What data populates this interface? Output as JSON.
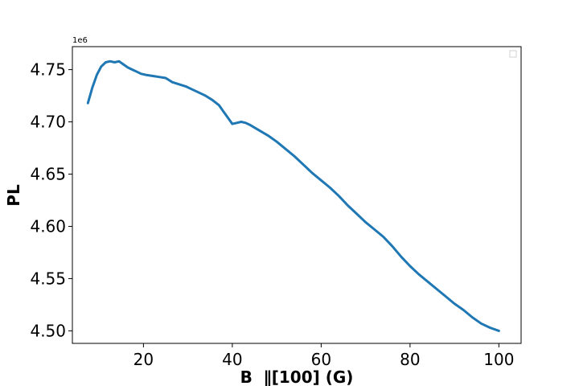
{
  "chart_data": {
    "type": "line",
    "title": "",
    "xlabel": "B  ∥[100] (G)",
    "ylabel": "PL",
    "y_offset_label": "1e6",
    "xlim": [
      4,
      105
    ],
    "ylim": [
      4.488,
      4.772
    ],
    "x_ticks": [
      20,
      40,
      60,
      80,
      100
    ],
    "x_tick_labels": [
      "20",
      "40",
      "60",
      "80",
      "100"
    ],
    "y_ticks": [
      4.5,
      4.55,
      4.6,
      4.65,
      4.7,
      4.75
    ],
    "y_tick_labels": [
      "4.50",
      "4.55",
      "4.60",
      "4.65",
      "4.70",
      "4.75"
    ],
    "grid": false,
    "legend": "top-right (empty)",
    "series": [
      {
        "color": "#1f77b4",
        "x": [
          7.5,
          8.5,
          9.5,
          10.5,
          11.5,
          12.5,
          13.5,
          14.5,
          15.5,
          16.5,
          17.5,
          18.5,
          19.5,
          20.5,
          22,
          23.5,
          25,
          26.5,
          28,
          29.5,
          31,
          32.5,
          34,
          35.5,
          37,
          38,
          39,
          40,
          41,
          42,
          43,
          44,
          46,
          48,
          50,
          52,
          54,
          56,
          58,
          60,
          62,
          64,
          66,
          68,
          70,
          72,
          74,
          76,
          78,
          80,
          82,
          84,
          86,
          88,
          90,
          92,
          94,
          96,
          98,
          100
        ],
        "y": [
          4.718,
          4.733,
          4.745,
          4.753,
          4.757,
          4.758,
          4.757,
          4.758,
          4.755,
          4.752,
          4.75,
          4.748,
          4.746,
          4.745,
          4.744,
          4.743,
          4.742,
          4.738,
          4.736,
          4.734,
          4.731,
          4.728,
          4.725,
          4.721,
          4.716,
          4.71,
          4.704,
          4.698,
          4.699,
          4.7,
          4.699,
          4.697,
          4.692,
          4.687,
          4.681,
          4.674,
          4.667,
          4.659,
          4.651,
          4.644,
          4.637,
          4.629,
          4.62,
          4.612,
          4.604,
          4.597,
          4.59,
          4.581,
          4.571,
          4.562,
          4.554,
          4.547,
          4.54,
          4.533,
          4.526,
          4.52,
          4.513,
          4.507,
          4.503,
          4.5
        ]
      }
    ]
  }
}
